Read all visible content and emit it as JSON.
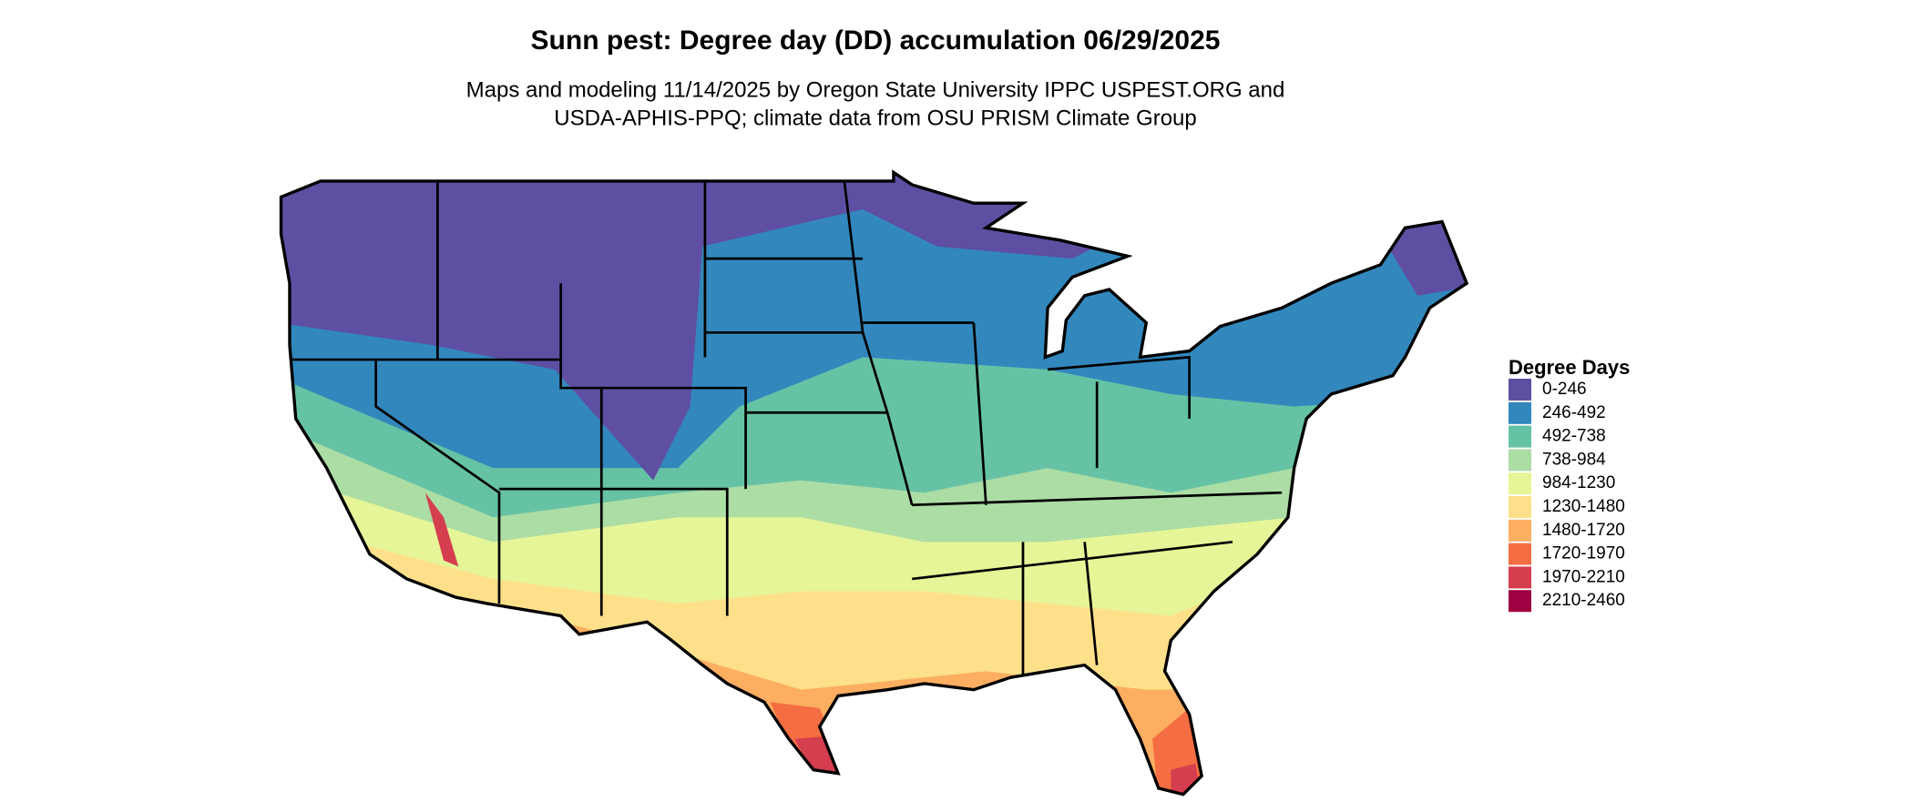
{
  "header": {
    "title": "Sunn pest: Degree day (DD) accumulation 06/29/2025",
    "subtitle_lines": [
      "Maps and modeling 11/14/2025 by Oregon State University IPPC USPEST.ORG and",
      "USDA-APHIS-PPQ; climate data from OSU PRISM Climate Group"
    ]
  },
  "legend": {
    "title": "Degree Days",
    "items": [
      {
        "label": "0-246",
        "color": "#5e4fa2"
      },
      {
        "label": "246-492",
        "color": "#3288bd"
      },
      {
        "label": "492-738",
        "color": "#66c2a5"
      },
      {
        "label": "738-984",
        "color": "#abdda4"
      },
      {
        "label": "984-1230",
        "color": "#e6f598"
      },
      {
        "label": "1230-1480",
        "color": "#fee08b"
      },
      {
        "label": "1480-1720",
        "color": "#fdae61"
      },
      {
        "label": "1720-1970",
        "color": "#f46d43"
      },
      {
        "label": "1970-2210",
        "color": "#d53e4f"
      },
      {
        "label": "2210-2460",
        "color": "#9e0142"
      }
    ]
  }
}
